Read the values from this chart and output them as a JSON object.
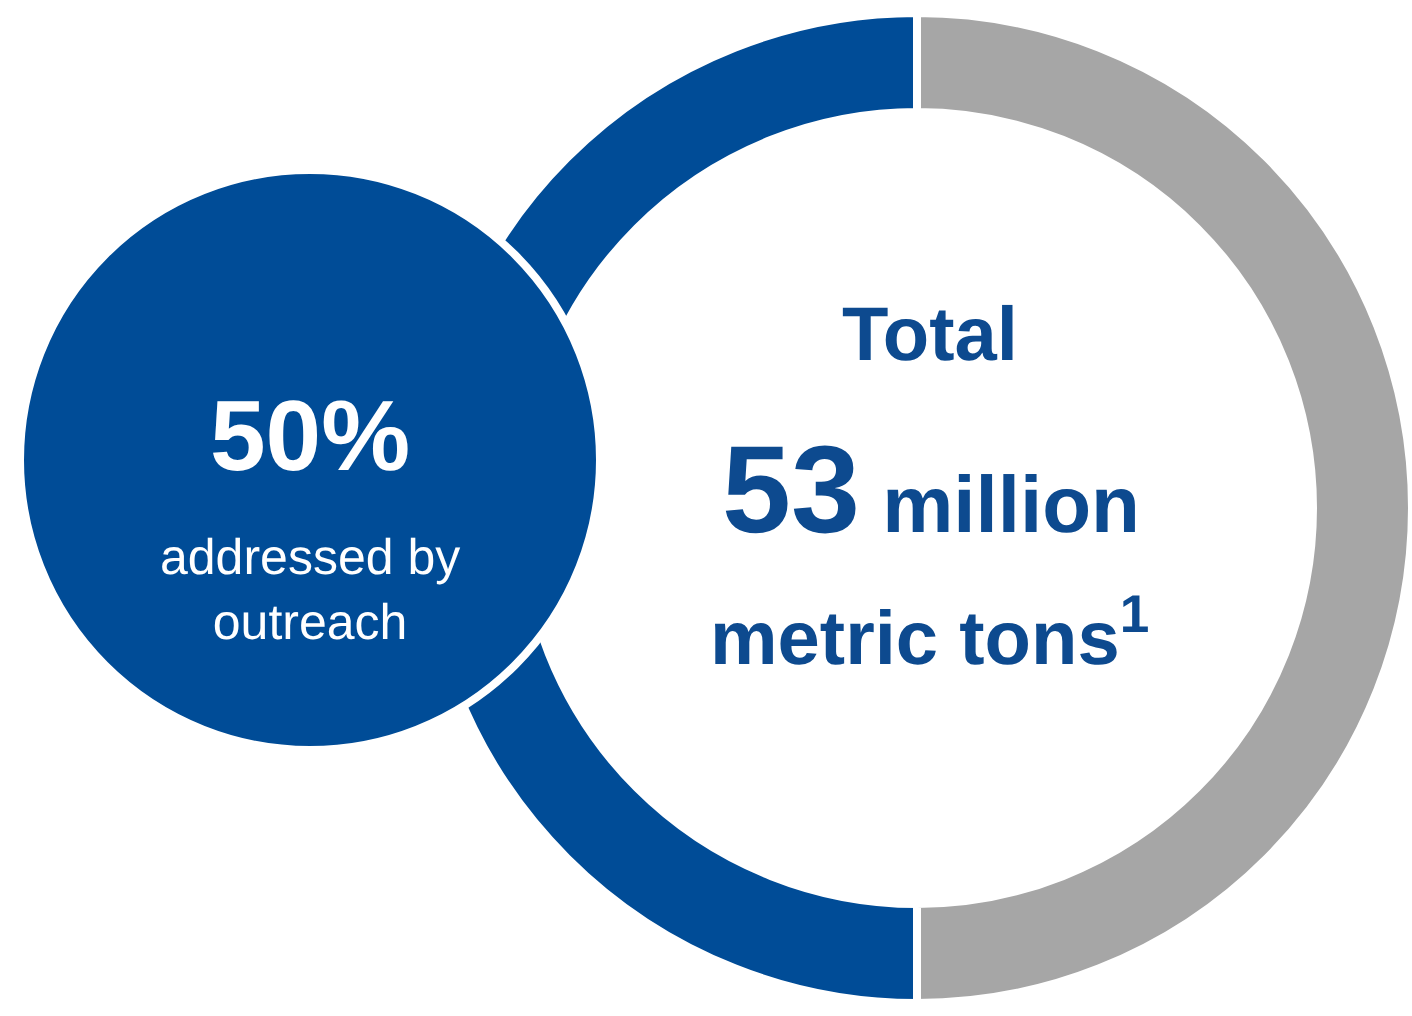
{
  "chart_data": {
    "type": "donut",
    "title": "Total",
    "subtitle": "53 million metric tons$^{1}$",
    "categories": [
      null,
      null
    ],
    "values": [
      50,
      50
    ],
    "colors": [
      "#004c97",
      "#a6a6a6"
    ],
    "annotations": [
      "50%",
      "addressed by outreach"
    ],
    "legend": false
  }
}
